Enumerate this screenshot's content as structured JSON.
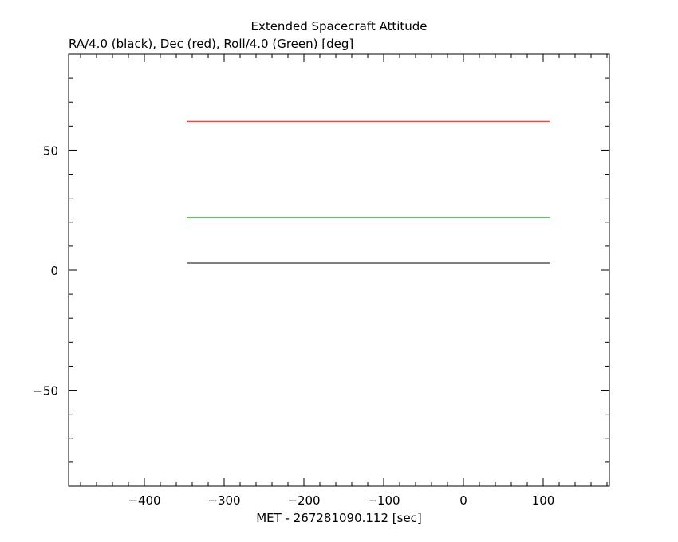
{
  "chart_data": {
    "type": "line",
    "title": "Extended Spacecraft Attitude",
    "subtitle": "RA/4.0 (black), Dec (red), Roll/4.0 (Green) [deg]",
    "xlabel": "MET - 267281090.112 [sec]",
    "ylabel": "",
    "xlim": [
      -495,
      183
    ],
    "ylim": [
      -90,
      90
    ],
    "grid": false,
    "x_ticks": [
      -400,
      -300,
      -200,
      -100,
      0,
      100
    ],
    "x_tick_labels": [
      "−400",
      "−300",
      "−200",
      "−100",
      "0",
      "100"
    ],
    "y_ticks": [
      -50,
      0,
      50
    ],
    "y_tick_labels": [
      "−50",
      "0",
      "50"
    ],
    "series": [
      {
        "color": "#000000",
        "x": [
          -347,
          108
        ],
        "y": [
          3,
          3
        ]
      },
      {
        "color": "#ff0000",
        "x": [
          -347,
          108
        ],
        "y": [
          62,
          62
        ]
      },
      {
        "color": "#00cc00",
        "x": [
          -347,
          108
        ],
        "y": [
          22,
          22
        ]
      }
    ]
  }
}
